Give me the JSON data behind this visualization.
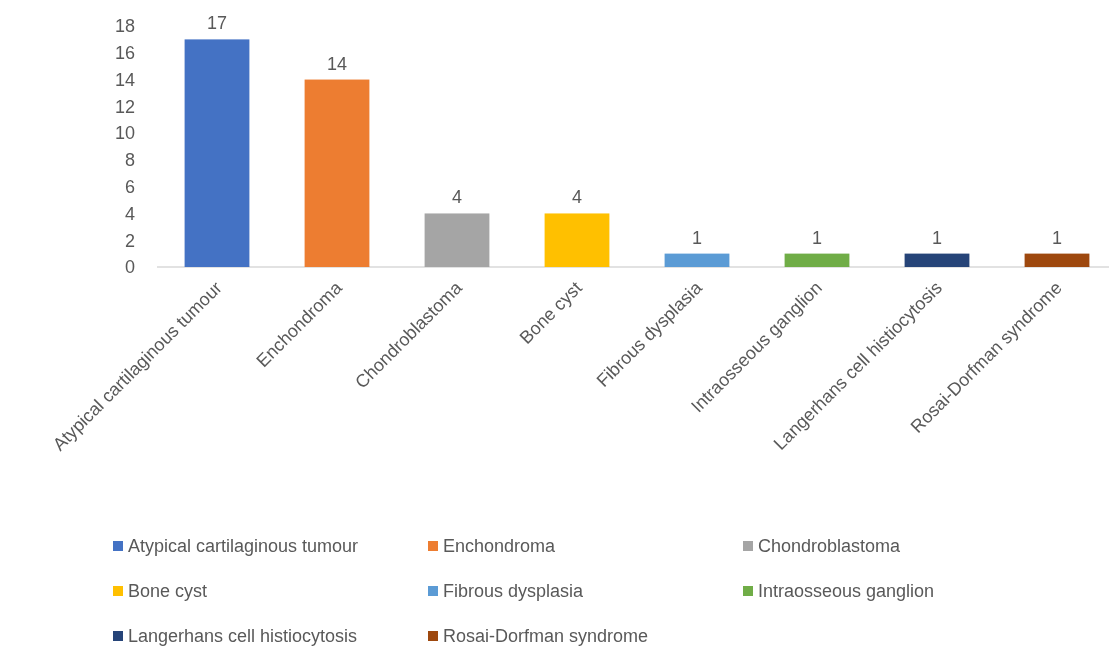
{
  "chart_data": {
    "type": "bar",
    "categories": [
      "Atypical cartilaginous tumour",
      "Enchondroma",
      "Chondroblastoma",
      "Bone cyst",
      "Fibrous dysplasia",
      "Intraosseous ganglion",
      "Langerhans cell histiocytosis",
      "Rosai-Dorfman syndrome"
    ],
    "series": [
      {
        "name": "Atypical cartilaginous tumour",
        "color": "#4472c4",
        "values": [
          17,
          null,
          null,
          null,
          null,
          null,
          null,
          null
        ]
      },
      {
        "name": "Enchondroma",
        "color": "#ed7d31",
        "values": [
          null,
          14,
          null,
          null,
          null,
          null,
          null,
          null
        ]
      },
      {
        "name": "Chondroblastoma",
        "color": "#a5a5a5",
        "values": [
          null,
          null,
          4,
          null,
          null,
          null,
          null,
          null
        ]
      },
      {
        "name": "Bone cyst",
        "color": "#ffc000",
        "values": [
          null,
          null,
          null,
          4,
          null,
          null,
          null,
          null
        ]
      },
      {
        "name": "Fibrous dysplasia",
        "color": "#5b9bd5",
        "values": [
          null,
          null,
          null,
          null,
          1,
          null,
          null,
          null
        ]
      },
      {
        "name": "Intraosseous ganglion",
        "color": "#70ad47",
        "values": [
          null,
          null,
          null,
          null,
          null,
          1,
          null,
          null
        ]
      },
      {
        "name": "Langerhans cell histiocytosis",
        "color": "#264478",
        "values": [
          null,
          null,
          null,
          null,
          null,
          null,
          1,
          null
        ]
      },
      {
        "name": "Rosai-Dorfman syndrome",
        "color": "#9e480e",
        "values": [
          null,
          null,
          null,
          null,
          null,
          null,
          null,
          1
        ]
      }
    ],
    "ylim": [
      0,
      18
    ],
    "yticks": [
      0,
      2,
      4,
      6,
      8,
      10,
      12,
      14,
      16,
      18
    ],
    "data_labels": true,
    "grid": false,
    "legend": "bottom"
  }
}
